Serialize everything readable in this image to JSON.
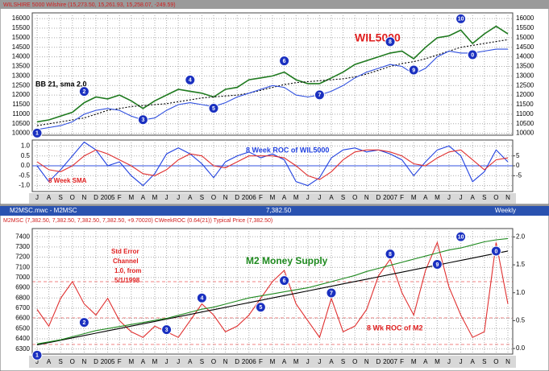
{
  "windows": {
    "top_title": "WILSHIRE 5000 Wilshire (15,273.50, 15,261.93, 15,258.07, -249.59)",
    "bottom_title": "M2MSC.mwc - M2MSC",
    "bottom_price": "7,382.50",
    "bottom_period": "Weekly",
    "bottom_header": "M2MSC (7,382.50, 7,382.50, 7,382.50, 7,382.50, +9.70020)   CWeekROC (0.64(21))   Typical Price (7,382.50)"
  },
  "chart_data": [
    {
      "type": "line",
      "annotations": [
        "WIL5000",
        "BB 21, sma 2.0"
      ],
      "markers": [
        "1",
        "2",
        "3",
        "4",
        "5",
        "6",
        "7",
        "8",
        "9",
        "10",
        "0"
      ],
      "ylim": [
        9900,
        16300
      ],
      "yticks": [
        10000,
        10500,
        11000,
        11500,
        12000,
        12500,
        13000,
        13500,
        14000,
        14500,
        15000,
        15500,
        16000
      ],
      "grid": true,
      "series": [
        {
          "color": "#1f7a1f",
          "values": [
            10600,
            10700,
            10900,
            11100,
            11600,
            11900,
            11800,
            12000,
            11700,
            11300,
            11700,
            12000,
            12300,
            12200,
            12100,
            11900,
            12300,
            12400,
            12800,
            12900,
            13000,
            13200,
            12800,
            12600,
            12600,
            12900,
            13200,
            13600,
            13800,
            14000,
            14200,
            14300,
            13900,
            14500,
            15000,
            15100,
            15400,
            14700,
            15200,
            15600,
            15200
          ]
        },
        {
          "color": "#000000",
          "values": [
            10400,
            10500,
            10600,
            10700,
            10800,
            11000,
            11200,
            11300,
            11400,
            11450,
            11500,
            11550,
            11650,
            11750,
            11850,
            11900,
            11950,
            12000,
            12100,
            12250,
            12400,
            12550,
            12650,
            12700,
            12750,
            12800,
            12850,
            12950,
            13100,
            13300,
            13500,
            13650,
            13750,
            13900,
            14100,
            14300,
            14500,
            14600,
            14700,
            14800,
            14900
          ]
        },
        {
          "color": "#3050e0",
          "values": [
            10200,
            10300,
            10400,
            10600,
            11000,
            11200,
            11300,
            11200,
            10900,
            10700,
            10800,
            11200,
            11500,
            11600,
            11500,
            11400,
            11600,
            11900,
            12100,
            12300,
            12500,
            12400,
            12000,
            11900,
            12000,
            12200,
            12500,
            12900,
            13200,
            13400,
            13600,
            13500,
            13100,
            13400,
            14000,
            14300,
            14200,
            14200,
            14300,
            14400,
            14400
          ]
        }
      ]
    },
    {
      "type": "line",
      "annotations": [
        "8 Week ROC of WIL5000",
        "8 Week SMA"
      ],
      "categories": [
        "J",
        "A",
        "S",
        "O",
        "N",
        "D",
        "2005",
        "F",
        "M",
        "A",
        "M",
        "J",
        "J",
        "A",
        "S",
        "O",
        "N",
        "D",
        "2006",
        "F",
        "M",
        "A",
        "M",
        "J",
        "J",
        "A",
        "S",
        "O",
        "N",
        "D",
        "2007",
        "F",
        "M",
        "A",
        "M",
        "J",
        "J",
        "A",
        "S",
        "O",
        "N"
      ],
      "ylim": [
        -1.3,
        1.3
      ],
      "yticks": [
        {
          "value": 1,
          "label": "1.0"
        },
        0.5,
        {
          "value": 0,
          "label": "0.0"
        },
        -0.5,
        {
          "value": -1,
          "label": "-1.0"
        }
      ],
      "y2lim": [
        -13,
        13
      ],
      "y2ticks": [
        5,
        0,
        -5
      ],
      "grid": true,
      "series": [
        {
          "color": "#2040e0",
          "values": [
            0.0,
            -0.8,
            -0.2,
            0.5,
            1.2,
            0.8,
            0.0,
            0.2,
            -0.5,
            -1.0,
            -0.4,
            0.6,
            0.9,
            0.6,
            0.1,
            -0.6,
            0.2,
            0.5,
            0.7,
            0.4,
            0.6,
            0.3,
            -0.8,
            -1.0,
            -0.6,
            0.4,
            0.8,
            0.9,
            0.7,
            0.8,
            0.6,
            0.3,
            -0.5,
            0.2,
            0.8,
            1.0,
            0.5,
            -0.8,
            -0.3,
            0.8,
            0.2
          ]
        },
        {
          "color": "#e03030",
          "values": [
            0.2,
            -0.2,
            -0.3,
            0.0,
            0.5,
            0.8,
            0.6,
            0.3,
            0.0,
            -0.4,
            -0.5,
            -0.2,
            0.3,
            0.6,
            0.5,
            0.0,
            -0.1,
            0.2,
            0.5,
            0.5,
            0.5,
            0.4,
            0.0,
            -0.5,
            -0.7,
            -0.3,
            0.3,
            0.7,
            0.8,
            0.8,
            0.7,
            0.5,
            0.1,
            0.0,
            0.4,
            0.7,
            0.8,
            0.3,
            -0.2,
            0.3,
            0.4
          ]
        }
      ]
    },
    {
      "type": "line",
      "annotations": [
        "Std Error",
        "Channel",
        "1.0, from",
        "5/1/1998",
        "M2 Money Supply",
        "8 Wk ROC of M2"
      ],
      "markers": [
        "1",
        "2",
        "3",
        "4",
        "5",
        "6",
        "7",
        "8",
        "9",
        "10",
        "0"
      ],
      "categories": [
        "J",
        "A",
        "S",
        "O",
        "N",
        "D",
        "2005",
        "F",
        "M",
        "A",
        "M",
        "J",
        "J",
        "A",
        "S",
        "O",
        "N",
        "D",
        "2006",
        "F",
        "M",
        "A",
        "M",
        "J",
        "J",
        "A",
        "S",
        "O",
        "N",
        "D",
        "2007",
        "F",
        "M",
        "A",
        "M",
        "J",
        "J",
        "A",
        "S",
        "O",
        "N"
      ],
      "ylim": [
        6250,
        7480
      ],
      "yticks": [
        6300,
        6400,
        6500,
        6600,
        6700,
        6800,
        6900,
        7000,
        7100,
        7200,
        7300,
        7400
      ],
      "y2lim": [
        -0.1,
        2.15
      ],
      "y2ticks": [
        {
          "value": 0,
          "label": "0.0"
        },
        0.5,
        {
          "value": 1,
          "label": "1.0"
        },
        1.5,
        {
          "value": 2,
          "label": "2.0"
        }
      ],
      "grid": true,
      "series": [
        {
          "color": "#e03030",
          "axis": "y2",
          "values": [
            0.7,
            0.4,
            0.9,
            1.2,
            0.8,
            0.6,
            0.9,
            0.5,
            0.3,
            0.2,
            0.4,
            0.3,
            0.2,
            0.5,
            0.8,
            0.6,
            0.3,
            0.4,
            0.6,
            0.9,
            1.2,
            1.4,
            0.8,
            0.5,
            0.2,
            0.9,
            0.3,
            0.4,
            0.7,
            1.3,
            1.6,
            1.0,
            0.6,
            1.4,
            1.9,
            1.1,
            0.6,
            0.2,
            0.3,
            1.9,
            0.8
          ]
        },
        {
          "color": "#000000",
          "values": [
            6340,
            6363,
            6386,
            6409,
            6432,
            6455,
            6478,
            6501,
            6524,
            6547,
            6570,
            6593,
            6616,
            6639,
            6662,
            6685,
            6708,
            6731,
            6754,
            6777,
            6800,
            6823,
            6846,
            6869,
            6892,
            6915,
            6938,
            6961,
            6984,
            7007,
            7030,
            7053,
            7076,
            7099,
            7122,
            7145,
            7168,
            7191,
            7214,
            7237,
            7260
          ]
        },
        {
          "color": "#1f8a1f",
          "values": [
            6350,
            6370,
            6390,
            6420,
            6450,
            6480,
            6500,
            6520,
            6540,
            6560,
            6580,
            6600,
            6630,
            6660,
            6690,
            6710,
            6740,
            6770,
            6800,
            6820,
            6840,
            6860,
            6880,
            6900,
            6930,
            6960,
            6990,
            7020,
            7060,
            7090,
            7120,
            7150,
            7180,
            7210,
            7240,
            7270,
            7290,
            7320,
            7350,
            7370,
            7382.5
          ]
        }
      ]
    }
  ]
}
